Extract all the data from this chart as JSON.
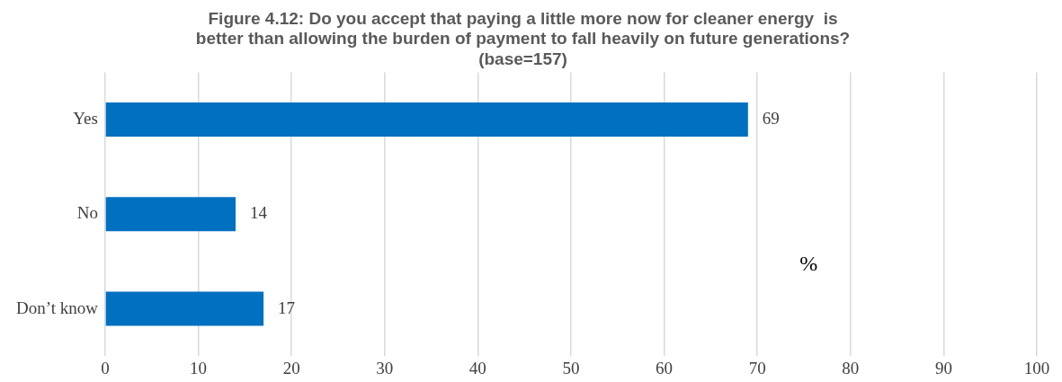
{
  "chart_data": {
    "type": "bar",
    "orientation": "horizontal",
    "title": "Figure 4.12: Do you accept that paying a little more now for cleaner energy  is\nbetter than allowing the burden of payment to fall heavily on future generations?\n(base=157)",
    "categories": [
      "Yes",
      "No",
      "Don’t know"
    ],
    "values": [
      69,
      14,
      17
    ],
    "color": "#0070c0",
    "xlim": [
      0,
      100
    ],
    "xticks": [
      0,
      10,
      20,
      30,
      40,
      50,
      60,
      70,
      80,
      90,
      100
    ],
    "grid": "x",
    "data_labels": true,
    "annotations": [
      "%"
    ]
  }
}
